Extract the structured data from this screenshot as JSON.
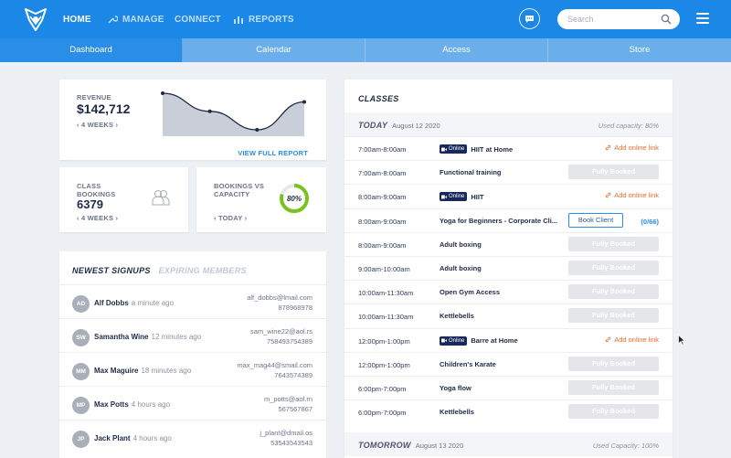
{
  "nav": {
    "home": "HOME",
    "manage": "MANAGE",
    "connect": "CONNECT",
    "reports": "REPORTS",
    "search_placeholder": "Search"
  },
  "tabs": [
    "Dashboard",
    "Calendar",
    "Access",
    "Store"
  ],
  "revenue": {
    "label": "REVENUE",
    "value": "$142,712",
    "period": "4 WEEKS",
    "link": "VIEW FULL REPORT"
  },
  "class_bookings": {
    "label_line1": "CLASS",
    "label_line2": "BOOKINGS",
    "value": "6379",
    "period": "4 WEEKS"
  },
  "capacity": {
    "label_line1": "BOOKINGS VS",
    "label_line2": "CAPACITY",
    "percent_label": "80%",
    "percent": 80,
    "period": "TODAY"
  },
  "signups": {
    "tab_active": "NEWEST SIGNUPS",
    "tab_inactive": "EXPIRING MEMBERS",
    "rows": [
      {
        "initials": "AD",
        "name": "Alf Dobbs",
        "ago": "a minute ago",
        "email": "alf_dobbs@lmail.com",
        "phone": "878968978"
      },
      {
        "initials": "SW",
        "name": "Samantha Wine",
        "ago": "12 minutes ago",
        "email": "sam_wine22@aol.rs",
        "phone": "758493754389"
      },
      {
        "initials": "MM",
        "name": "Max Maguire",
        "ago": "18 minutes ago",
        "email": "max_mag44@smail.com",
        "phone": "7643574389"
      },
      {
        "initials": "MP",
        "name": "Max Potts",
        "ago": "4 hours ago",
        "email": "m_potts@aol.rn",
        "phone": "567567867"
      },
      {
        "initials": "JP",
        "name": "Jack Plant",
        "ago": "4 hours ago",
        "email": "j_plant@dmail.os",
        "phone": "53543543543"
      }
    ]
  },
  "classes": {
    "title": "CLASSES",
    "today": {
      "name": "TODAY",
      "date": "August 12 2020",
      "capacity": "Used capacity: 80%"
    },
    "tomorrow": {
      "name": "TOMORROW",
      "date": "August 13 2020",
      "capacity": "Used Capacity: 100%"
    },
    "online_badge": "Online",
    "rows": [
      {
        "time": "7:00am-8:00am",
        "name": "HIIT at Home",
        "online": true,
        "action": "Add online link",
        "type": "online"
      },
      {
        "time": "7:00am-8:00am",
        "name": "Functional training",
        "online": false,
        "action": "Fully Booked",
        "type": "booked"
      },
      {
        "time": "8:00am-9:00am",
        "name": "HIIT",
        "online": true,
        "action": "Add online link",
        "type": "online"
      },
      {
        "time": "8:00am-9:00am",
        "name": "Yoga for Beginners - Corporate Cli...",
        "online": false,
        "action": "Book Client",
        "type": "book",
        "count": "(0/66)"
      },
      {
        "time": "8:00am-9:00am",
        "name": "Adult boxing",
        "online": false,
        "action": "Fully Booked",
        "type": "booked"
      },
      {
        "time": "9:00am-10:00am",
        "name": "Adult boxing",
        "online": false,
        "action": "Fully Booked",
        "type": "booked"
      },
      {
        "time": "10:00am-11:30am",
        "name": "Open Gym Access",
        "online": false,
        "action": "Fully Booked",
        "type": "booked"
      },
      {
        "time": "10:00am-11:30am",
        "name": "Kettlebells",
        "online": false,
        "action": "Fully Booked",
        "type": "booked"
      },
      {
        "time": "12:00pm-1:00pm",
        "name": "Barre at Home",
        "online": true,
        "action": "Add online link",
        "type": "online"
      },
      {
        "time": "12:00pm-1:00pm",
        "name": "Children's Karate",
        "online": false,
        "action": "Fully Booked",
        "type": "booked"
      },
      {
        "time": "6:00pm-7:00pm",
        "name": "Yoga flow",
        "online": false,
        "action": "Fully Booked",
        "type": "booked"
      },
      {
        "time": "6:00pm-7:00pm",
        "name": "Kettlebells",
        "online": false,
        "action": "Fully Booked",
        "type": "booked"
      }
    ]
  },
  "colors": {
    "brand": "#1b87e6",
    "tab_bar": "#6aaeeb",
    "accent_green": "#7ac21d",
    "link_orange": "#e86a2d",
    "online_badge": "#16295a"
  },
  "revenue_trend": [
    100,
    48,
    -5,
    75
  ]
}
